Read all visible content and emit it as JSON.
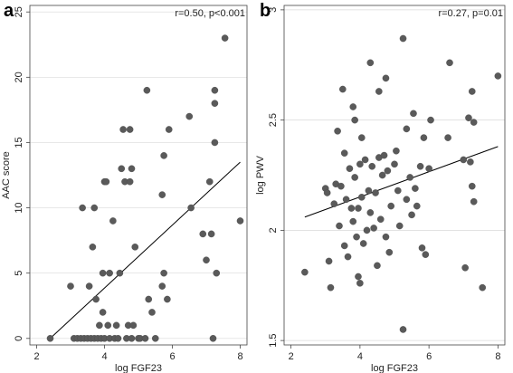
{
  "chart_data": [
    {
      "type": "scatter",
      "panel": "a",
      "title": "",
      "annotation": "r=0.50, p<0.001",
      "xlabel": "log FGF23",
      "ylabel": "AAC score",
      "xlim": [
        1.8,
        8.2
      ],
      "ylim": [
        -0.5,
        25.5
      ],
      "xticks": [
        2,
        4,
        6,
        8
      ],
      "yticks": [
        0,
        5,
        10,
        15,
        20,
        25
      ],
      "grid": "horizontal",
      "fit_line": {
        "x": [
          2.4,
          8.0
        ],
        "y": [
          0.0,
          13.5
        ]
      },
      "points": [
        {
          "x": 2.4,
          "y": 0
        },
        {
          "x": 3.0,
          "y": 4
        },
        {
          "x": 3.1,
          "y": 0
        },
        {
          "x": 3.2,
          "y": 0
        },
        {
          "x": 3.3,
          "y": 0
        },
        {
          "x": 3.35,
          "y": 10
        },
        {
          "x": 3.4,
          "y": 0
        },
        {
          "x": 3.5,
          "y": 0
        },
        {
          "x": 3.55,
          "y": 4
        },
        {
          "x": 3.6,
          "y": 0
        },
        {
          "x": 3.65,
          "y": 7
        },
        {
          "x": 3.7,
          "y": 10
        },
        {
          "x": 3.7,
          "y": 0
        },
        {
          "x": 3.75,
          "y": 3
        },
        {
          "x": 3.8,
          "y": 0
        },
        {
          "x": 3.85,
          "y": 1
        },
        {
          "x": 3.9,
          "y": 0
        },
        {
          "x": 3.95,
          "y": 5
        },
        {
          "x": 3.95,
          "y": 2
        },
        {
          "x": 4.0,
          "y": 12
        },
        {
          "x": 4.0,
          "y": 0
        },
        {
          "x": 4.05,
          "y": 12
        },
        {
          "x": 4.1,
          "y": 1
        },
        {
          "x": 4.15,
          "y": 0
        },
        {
          "x": 4.15,
          "y": 5
        },
        {
          "x": 4.25,
          "y": 9
        },
        {
          "x": 4.3,
          "y": 0
        },
        {
          "x": 4.35,
          "y": 1
        },
        {
          "x": 4.4,
          "y": 0
        },
        {
          "x": 4.45,
          "y": 5
        },
        {
          "x": 4.5,
          "y": 13
        },
        {
          "x": 4.55,
          "y": 16
        },
        {
          "x": 4.6,
          "y": 12
        },
        {
          "x": 4.65,
          "y": 0
        },
        {
          "x": 4.7,
          "y": 1
        },
        {
          "x": 4.75,
          "y": 12
        },
        {
          "x": 4.75,
          "y": 16
        },
        {
          "x": 4.8,
          "y": 13
        },
        {
          "x": 4.8,
          "y": 0
        },
        {
          "x": 4.85,
          "y": 1
        },
        {
          "x": 4.9,
          "y": 7
        },
        {
          "x": 5.0,
          "y": 0
        },
        {
          "x": 5.05,
          "y": 0
        },
        {
          "x": 5.2,
          "y": 0
        },
        {
          "x": 5.25,
          "y": 19
        },
        {
          "x": 5.3,
          "y": 3
        },
        {
          "x": 5.4,
          "y": 2
        },
        {
          "x": 5.5,
          "y": 0
        },
        {
          "x": 5.7,
          "y": 11
        },
        {
          "x": 5.7,
          "y": 4
        },
        {
          "x": 5.75,
          "y": 14
        },
        {
          "x": 5.75,
          "y": 5
        },
        {
          "x": 5.85,
          "y": 3
        },
        {
          "x": 5.9,
          "y": 16
        },
        {
          "x": 6.5,
          "y": 17
        },
        {
          "x": 6.55,
          "y": 10
        },
        {
          "x": 6.9,
          "y": 8
        },
        {
          "x": 7.0,
          "y": 6
        },
        {
          "x": 7.1,
          "y": 12
        },
        {
          "x": 7.15,
          "y": 8
        },
        {
          "x": 7.2,
          "y": 0
        },
        {
          "x": 7.25,
          "y": 15
        },
        {
          "x": 7.25,
          "y": 18
        },
        {
          "x": 7.25,
          "y": 19
        },
        {
          "x": 7.3,
          "y": 5
        },
        {
          "x": 7.55,
          "y": 23
        },
        {
          "x": 8.0,
          "y": 9
        }
      ]
    },
    {
      "type": "scatter",
      "panel": "b",
      "title": "",
      "annotation": "r=0.27, p=0.01",
      "xlabel": "log FGF23",
      "ylabel": "log PWV",
      "xlim": [
        1.8,
        8.2
      ],
      "ylim": [
        1.48,
        3.02
      ],
      "xticks": [
        2,
        4,
        6,
        8
      ],
      "yticks": [
        1.5,
        2,
        2.5,
        3
      ],
      "grid": "horizontal",
      "fit_line": {
        "x": [
          2.4,
          8.0
        ],
        "y": [
          2.06,
          2.38
        ]
      },
      "points": [
        {
          "x": 2.4,
          "y": 1.81
        },
        {
          "x": 3.0,
          "y": 2.19
        },
        {
          "x": 3.05,
          "y": 2.17
        },
        {
          "x": 3.1,
          "y": 1.86
        },
        {
          "x": 3.15,
          "y": 1.74
        },
        {
          "x": 3.25,
          "y": 2.12
        },
        {
          "x": 3.3,
          "y": 2.21
        },
        {
          "x": 3.35,
          "y": 2.45
        },
        {
          "x": 3.4,
          "y": 2.02
        },
        {
          "x": 3.45,
          "y": 2.2
        },
        {
          "x": 3.5,
          "y": 2.64
        },
        {
          "x": 3.55,
          "y": 1.93
        },
        {
          "x": 3.55,
          "y": 2.35
        },
        {
          "x": 3.6,
          "y": 2.14
        },
        {
          "x": 3.65,
          "y": 1.88
        },
        {
          "x": 3.7,
          "y": 2.28
        },
        {
          "x": 3.75,
          "y": 2.1
        },
        {
          "x": 3.8,
          "y": 2.56
        },
        {
          "x": 3.8,
          "y": 2.04
        },
        {
          "x": 3.85,
          "y": 2.5
        },
        {
          "x": 3.85,
          "y": 2.24
        },
        {
          "x": 3.9,
          "y": 1.97
        },
        {
          "x": 3.95,
          "y": 1.79
        },
        {
          "x": 3.95,
          "y": 2.1
        },
        {
          "x": 4.0,
          "y": 1.76
        },
        {
          "x": 4.0,
          "y": 2.3
        },
        {
          "x": 4.05,
          "y": 2.15
        },
        {
          "x": 4.05,
          "y": 2.42
        },
        {
          "x": 4.1,
          "y": 1.94
        },
        {
          "x": 4.15,
          "y": 2.32
        },
        {
          "x": 4.2,
          "y": 2.0
        },
        {
          "x": 4.25,
          "y": 2.18
        },
        {
          "x": 4.3,
          "y": 2.76
        },
        {
          "x": 4.3,
          "y": 2.08
        },
        {
          "x": 4.35,
          "y": 2.29
        },
        {
          "x": 4.4,
          "y": 2.01
        },
        {
          "x": 4.45,
          "y": 2.17
        },
        {
          "x": 4.5,
          "y": 1.84
        },
        {
          "x": 4.55,
          "y": 2.63
        },
        {
          "x": 4.55,
          "y": 2.33
        },
        {
          "x": 4.6,
          "y": 2.05
        },
        {
          "x": 4.65,
          "y": 2.25
        },
        {
          "x": 4.7,
          "y": 2.34
        },
        {
          "x": 4.75,
          "y": 2.69
        },
        {
          "x": 4.75,
          "y": 1.97
        },
        {
          "x": 4.8,
          "y": 2.27
        },
        {
          "x": 4.85,
          "y": 1.9
        },
        {
          "x": 4.9,
          "y": 2.11
        },
        {
          "x": 5.0,
          "y": 2.3
        },
        {
          "x": 5.05,
          "y": 2.36
        },
        {
          "x": 5.1,
          "y": 2.18
        },
        {
          "x": 5.15,
          "y": 2.02
        },
        {
          "x": 5.25,
          "y": 2.87
        },
        {
          "x": 5.25,
          "y": 1.55
        },
        {
          "x": 5.35,
          "y": 2.46
        },
        {
          "x": 5.35,
          "y": 2.14
        },
        {
          "x": 5.45,
          "y": 2.24
        },
        {
          "x": 5.5,
          "y": 2.07
        },
        {
          "x": 5.55,
          "y": 2.53
        },
        {
          "x": 5.6,
          "y": 2.19
        },
        {
          "x": 5.65,
          "y": 2.11
        },
        {
          "x": 5.75,
          "y": 2.29
        },
        {
          "x": 5.8,
          "y": 1.92
        },
        {
          "x": 5.85,
          "y": 2.42
        },
        {
          "x": 5.9,
          "y": 1.89
        },
        {
          "x": 6.0,
          "y": 2.28
        },
        {
          "x": 6.05,
          "y": 2.5
        },
        {
          "x": 6.55,
          "y": 2.42
        },
        {
          "x": 6.6,
          "y": 2.76
        },
        {
          "x": 7.0,
          "y": 2.32
        },
        {
          "x": 7.05,
          "y": 1.83
        },
        {
          "x": 7.15,
          "y": 2.51
        },
        {
          "x": 7.2,
          "y": 2.31
        },
        {
          "x": 7.25,
          "y": 2.63
        },
        {
          "x": 7.25,
          "y": 2.2
        },
        {
          "x": 7.3,
          "y": 2.49
        },
        {
          "x": 7.3,
          "y": 2.13
        },
        {
          "x": 7.55,
          "y": 1.74
        },
        {
          "x": 8.0,
          "y": 2.7
        }
      ]
    }
  ]
}
